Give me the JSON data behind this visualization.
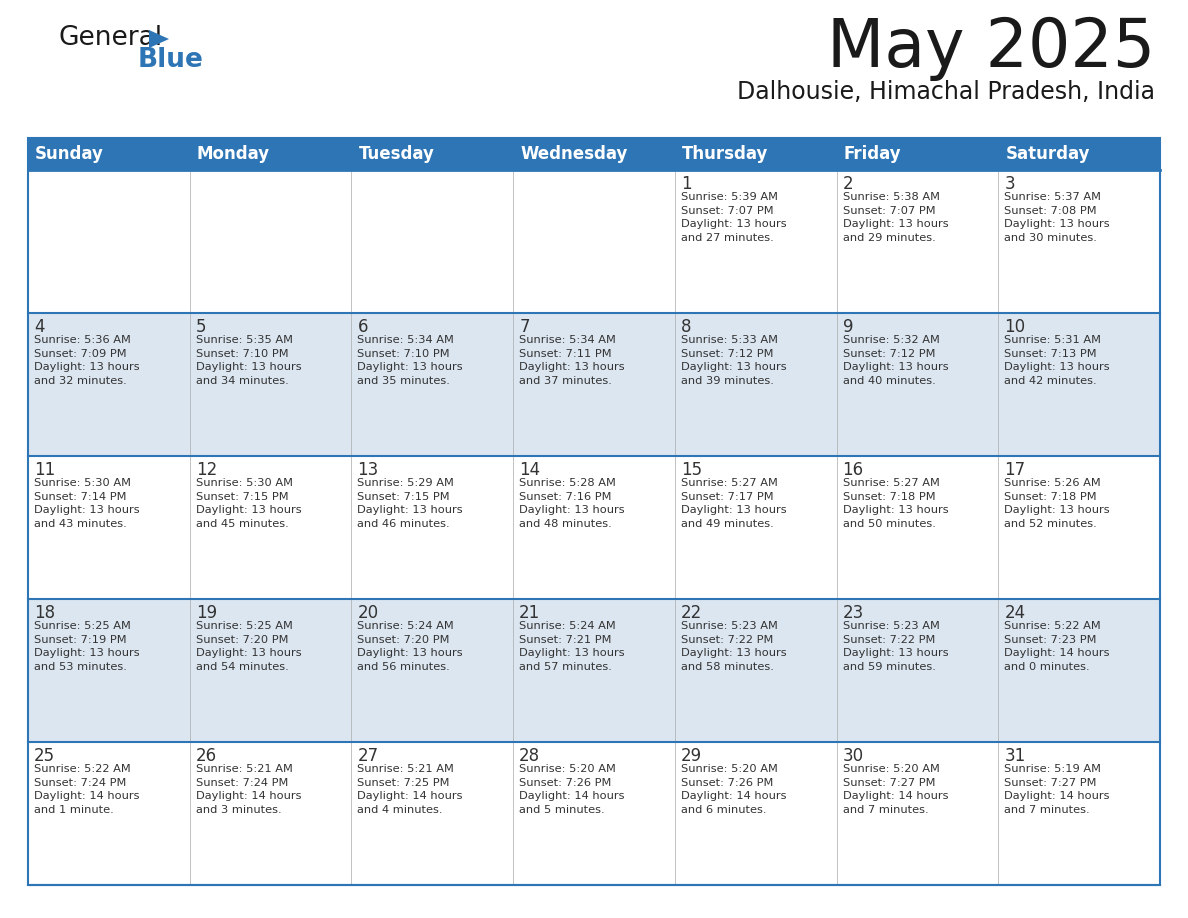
{
  "title": "May 2025",
  "subtitle": "Dalhousie, Himachal Pradesh, India",
  "header_bg": "#2e75b6",
  "header_text_color": "#ffffff",
  "days_of_week": [
    "Sunday",
    "Monday",
    "Tuesday",
    "Wednesday",
    "Thursday",
    "Friday",
    "Saturday"
  ],
  "row_bg_even": "#ffffff",
  "row_bg_odd": "#dce6f1",
  "cell_text_color": "#333333",
  "grid_line_color": "#2e75b6",
  "calendar": [
    [
      {
        "day": "",
        "text": ""
      },
      {
        "day": "",
        "text": ""
      },
      {
        "day": "",
        "text": ""
      },
      {
        "day": "",
        "text": ""
      },
      {
        "day": "1",
        "text": "Sunrise: 5:39 AM\nSunset: 7:07 PM\nDaylight: 13 hours\nand 27 minutes."
      },
      {
        "day": "2",
        "text": "Sunrise: 5:38 AM\nSunset: 7:07 PM\nDaylight: 13 hours\nand 29 minutes."
      },
      {
        "day": "3",
        "text": "Sunrise: 5:37 AM\nSunset: 7:08 PM\nDaylight: 13 hours\nand 30 minutes."
      }
    ],
    [
      {
        "day": "4",
        "text": "Sunrise: 5:36 AM\nSunset: 7:09 PM\nDaylight: 13 hours\nand 32 minutes."
      },
      {
        "day": "5",
        "text": "Sunrise: 5:35 AM\nSunset: 7:10 PM\nDaylight: 13 hours\nand 34 minutes."
      },
      {
        "day": "6",
        "text": "Sunrise: 5:34 AM\nSunset: 7:10 PM\nDaylight: 13 hours\nand 35 minutes."
      },
      {
        "day": "7",
        "text": "Sunrise: 5:34 AM\nSunset: 7:11 PM\nDaylight: 13 hours\nand 37 minutes."
      },
      {
        "day": "8",
        "text": "Sunrise: 5:33 AM\nSunset: 7:12 PM\nDaylight: 13 hours\nand 39 minutes."
      },
      {
        "day": "9",
        "text": "Sunrise: 5:32 AM\nSunset: 7:12 PM\nDaylight: 13 hours\nand 40 minutes."
      },
      {
        "day": "10",
        "text": "Sunrise: 5:31 AM\nSunset: 7:13 PM\nDaylight: 13 hours\nand 42 minutes."
      }
    ],
    [
      {
        "day": "11",
        "text": "Sunrise: 5:30 AM\nSunset: 7:14 PM\nDaylight: 13 hours\nand 43 minutes."
      },
      {
        "day": "12",
        "text": "Sunrise: 5:30 AM\nSunset: 7:15 PM\nDaylight: 13 hours\nand 45 minutes."
      },
      {
        "day": "13",
        "text": "Sunrise: 5:29 AM\nSunset: 7:15 PM\nDaylight: 13 hours\nand 46 minutes."
      },
      {
        "day": "14",
        "text": "Sunrise: 5:28 AM\nSunset: 7:16 PM\nDaylight: 13 hours\nand 48 minutes."
      },
      {
        "day": "15",
        "text": "Sunrise: 5:27 AM\nSunset: 7:17 PM\nDaylight: 13 hours\nand 49 minutes."
      },
      {
        "day": "16",
        "text": "Sunrise: 5:27 AM\nSunset: 7:18 PM\nDaylight: 13 hours\nand 50 minutes."
      },
      {
        "day": "17",
        "text": "Sunrise: 5:26 AM\nSunset: 7:18 PM\nDaylight: 13 hours\nand 52 minutes."
      }
    ],
    [
      {
        "day": "18",
        "text": "Sunrise: 5:25 AM\nSunset: 7:19 PM\nDaylight: 13 hours\nand 53 minutes."
      },
      {
        "day": "19",
        "text": "Sunrise: 5:25 AM\nSunset: 7:20 PM\nDaylight: 13 hours\nand 54 minutes."
      },
      {
        "day": "20",
        "text": "Sunrise: 5:24 AM\nSunset: 7:20 PM\nDaylight: 13 hours\nand 56 minutes."
      },
      {
        "day": "21",
        "text": "Sunrise: 5:24 AM\nSunset: 7:21 PM\nDaylight: 13 hours\nand 57 minutes."
      },
      {
        "day": "22",
        "text": "Sunrise: 5:23 AM\nSunset: 7:22 PM\nDaylight: 13 hours\nand 58 minutes."
      },
      {
        "day": "23",
        "text": "Sunrise: 5:23 AM\nSunset: 7:22 PM\nDaylight: 13 hours\nand 59 minutes."
      },
      {
        "day": "24",
        "text": "Sunrise: 5:22 AM\nSunset: 7:23 PM\nDaylight: 14 hours\nand 0 minutes."
      }
    ],
    [
      {
        "day": "25",
        "text": "Sunrise: 5:22 AM\nSunset: 7:24 PM\nDaylight: 14 hours\nand 1 minute."
      },
      {
        "day": "26",
        "text": "Sunrise: 5:21 AM\nSunset: 7:24 PM\nDaylight: 14 hours\nand 3 minutes."
      },
      {
        "day": "27",
        "text": "Sunrise: 5:21 AM\nSunset: 7:25 PM\nDaylight: 14 hours\nand 4 minutes."
      },
      {
        "day": "28",
        "text": "Sunrise: 5:20 AM\nSunset: 7:26 PM\nDaylight: 14 hours\nand 5 minutes."
      },
      {
        "day": "29",
        "text": "Sunrise: 5:20 AM\nSunset: 7:26 PM\nDaylight: 14 hours\nand 6 minutes."
      },
      {
        "day": "30",
        "text": "Sunrise: 5:20 AM\nSunset: 7:27 PM\nDaylight: 14 hours\nand 7 minutes."
      },
      {
        "day": "31",
        "text": "Sunrise: 5:19 AM\nSunset: 7:27 PM\nDaylight: 14 hours\nand 7 minutes."
      }
    ]
  ],
  "logo_general_color": "#1a1a1a",
  "logo_blue_color": "#2e75b6",
  "logo_triangle_color": "#2e75b6",
  "fig_width": 11.88,
  "fig_height": 9.18,
  "fig_dpi": 100
}
